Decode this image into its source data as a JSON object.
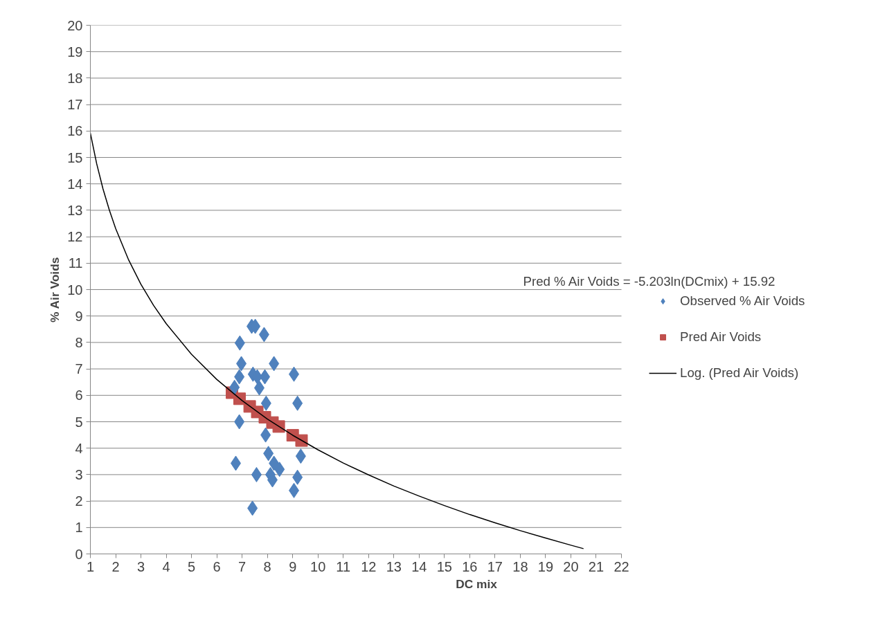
{
  "chart_data": {
    "type": "scatter",
    "xlabel": "DC mix",
    "ylabel": "% Air Voids",
    "xlim": [
      1,
      22
    ],
    "ylim": [
      0,
      20
    ],
    "xticks": [
      1,
      2,
      3,
      4,
      5,
      6,
      7,
      8,
      9,
      10,
      11,
      12,
      13,
      14,
      15,
      16,
      17,
      18,
      19,
      20,
      21,
      22
    ],
    "yticks": [
      0,
      1,
      2,
      3,
      4,
      5,
      6,
      7,
      8,
      9,
      10,
      11,
      12,
      13,
      14,
      15,
      16,
      17,
      18,
      19,
      20
    ],
    "grid": "y",
    "legend": "right",
    "annotations": [
      "Pred % Air Voids = -5.203ln(DCmix) + 15.92"
    ],
    "series": [
      {
        "name": "Observed % Air Voids",
        "marker": "diamond",
        "color": "#4f81bd",
        "x": [
          7.38,
          7.52,
          7.87,
          6.91,
          8.26,
          6.97,
          6.89,
          7.43,
          7.6,
          7.9,
          9.05,
          7.68,
          6.7,
          7.95,
          9.19,
          6.89,
          7.93,
          8.04,
          6.75,
          8.26,
          8.48,
          8.12,
          7.57,
          8.2,
          9.19,
          9.32,
          9.05,
          7.41
        ],
        "values": [
          8.61,
          8.61,
          8.3,
          7.98,
          7.2,
          7.2,
          6.7,
          6.8,
          6.7,
          6.7,
          6.8,
          6.28,
          6.3,
          5.7,
          5.7,
          5.0,
          4.5,
          3.8,
          3.43,
          3.43,
          3.2,
          3.0,
          3.0,
          2.8,
          2.9,
          3.7,
          2.4,
          1.73
        ]
      },
      {
        "name": "Pred Air Voids",
        "marker": "square",
        "color": "#c0504d",
        "x": [
          6.6,
          6.9,
          7.3,
          7.6,
          7.9,
          8.2,
          8.45,
          9.0,
          9.35
        ],
        "values": [
          6.1,
          5.87,
          5.58,
          5.37,
          5.17,
          4.97,
          4.82,
          4.49,
          4.29
        ]
      },
      {
        "name": "Log. (Pred Air Voids)",
        "type": "line",
        "marker": "none",
        "line_style": "solid",
        "color": "#000000",
        "x": [
          1,
          1.25,
          1.5,
          1.75,
          2,
          2.5,
          3,
          3.5,
          4,
          5,
          6,
          7,
          8,
          9,
          10,
          11,
          12,
          13,
          14,
          15,
          16,
          17,
          18,
          19,
          20,
          20.5
        ],
        "values": [
          15.92,
          14.76,
          13.81,
          13.01,
          12.31,
          11.15,
          10.2,
          9.4,
          8.71,
          7.55,
          6.6,
          5.8,
          5.1,
          4.49,
          3.94,
          3.44,
          2.99,
          2.57,
          2.19,
          1.83,
          1.49,
          1.18,
          0.88,
          0.6,
          0.33,
          0.2
        ]
      }
    ]
  }
}
